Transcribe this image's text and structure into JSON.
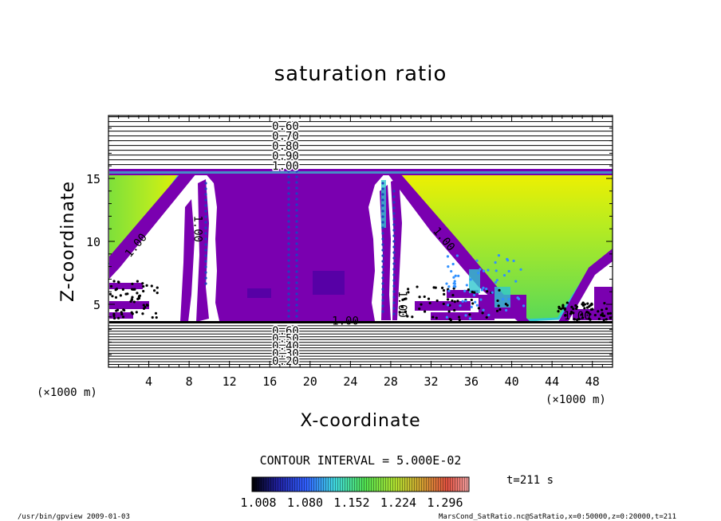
{
  "chart_data": {
    "type": "heatmap",
    "title": "saturation ratio",
    "xlabel": "X-coordinate",
    "ylabel": "Z-coordinate",
    "x_unit": "(×1000 m)",
    "xlim": [
      0,
      50
    ],
    "ylim": [
      0,
      20
    ],
    "x_ticks": [
      4,
      8,
      12,
      16,
      20,
      24,
      28,
      32,
      36,
      40,
      44,
      48
    ],
    "y_ticks": [
      5,
      10,
      15
    ],
    "contour_interval_text": "CONTOUR INTERVAL = 5.000E-02",
    "upper_contour_labels": [
      "0.60",
      "0.70",
      "0.80",
      "0.90",
      "1.00"
    ],
    "upper_contour_levels": [
      0.6,
      0.7,
      0.8,
      0.9,
      1.0
    ],
    "lower_contour_labels": [
      "0.60",
      "0.50",
      "0.40",
      "0.30",
      "0.20"
    ],
    "lower_contour_levels": [
      0.6,
      0.5,
      0.4,
      0.3,
      0.2
    ],
    "inline_contour_labels": [
      {
        "text": "1.00",
        "x": 3.0,
        "z": 9.5,
        "rotate": -50
      },
      {
        "text": "1.00",
        "x": 8.5,
        "z": 11.0,
        "rotate": 90
      },
      {
        "text": "1.00",
        "x": 23.5,
        "z": 3.4,
        "rotate": 0
      },
      {
        "text": "1.00",
        "x": 28.8,
        "z": 5.0,
        "rotate": 90
      },
      {
        "text": "1.00",
        "x": 33.0,
        "z": 10.0,
        "rotate": 50
      },
      {
        "text": "1.00",
        "x": 46.5,
        "z": 3.8,
        "rotate": 0
      }
    ],
    "colorbar_ticks": [
      "1.008",
      "1.080",
      "1.152",
      "1.224",
      "1.296"
    ],
    "colorbar_range": [
      1.008,
      1.296
    ],
    "time_label": "t=211 s",
    "colors": {
      "supersat_low": "#7a00b0",
      "supersat_high": "#e8f000",
      "mid_green": "#70e040",
      "edge_cyan": "#30c8d0",
      "contour": "#000000"
    }
  },
  "footer": {
    "left": "/usr/bin/gpview   2009-01-03",
    "right": "MarsCond_SatRatio.nc@SatRatio,x=0:50000,z=0:20000,t=211"
  }
}
